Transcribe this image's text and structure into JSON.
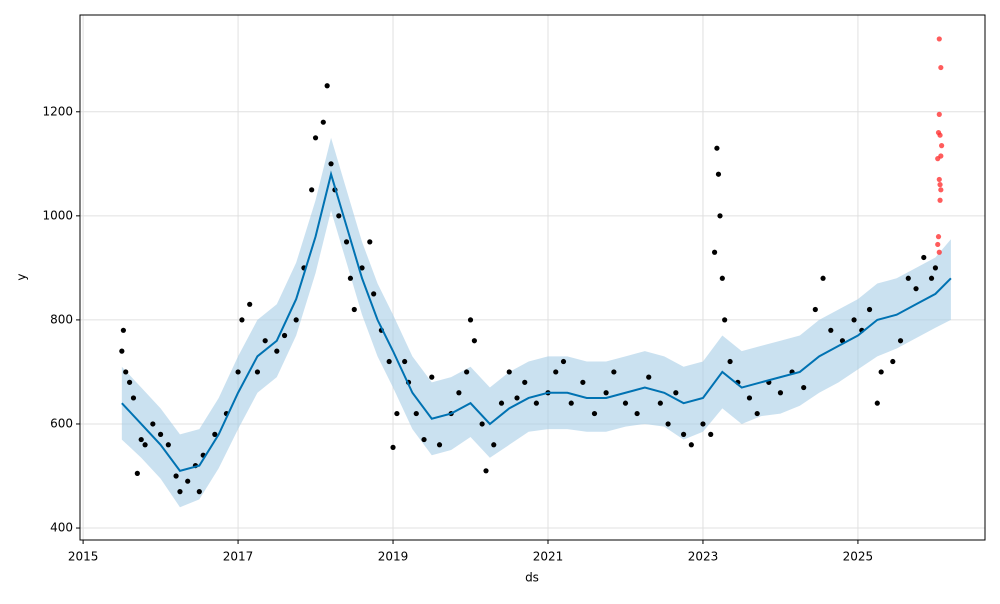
{
  "chart_data": {
    "type": "forecast",
    "xlabel": "ds",
    "ylabel": "y",
    "xlim": [
      2014.96,
      2026.64
    ],
    "ylim": [
      377,
      1386
    ],
    "xticks": [
      2015,
      2017,
      2019,
      2021,
      2023,
      2025
    ],
    "yticks": [
      400,
      600,
      800,
      1000,
      1200
    ],
    "grid": true,
    "forecast": {
      "color": "#0072b2",
      "band_color": "#a6cde6",
      "x": [
        2015.5,
        2015.75,
        2016.0,
        2016.25,
        2016.5,
        2016.75,
        2017.0,
        2017.25,
        2017.5,
        2017.75,
        2018.0,
        2018.2,
        2018.4,
        2018.6,
        2018.8,
        2019.0,
        2019.25,
        2019.5,
        2019.75,
        2020.0,
        2020.25,
        2020.5,
        2020.75,
        2021.0,
        2021.25,
        2021.5,
        2021.75,
        2022.0,
        2022.25,
        2022.5,
        2022.75,
        2023.0,
        2023.25,
        2023.5,
        2023.75,
        2024.0,
        2024.25,
        2024.5,
        2024.75,
        2025.0,
        2025.25,
        2025.5,
        2025.75,
        2026.0,
        2026.2
      ],
      "values": [
        640,
        600,
        560,
        510,
        520,
        580,
        660,
        730,
        760,
        840,
        960,
        1080,
        980,
        880,
        800,
        740,
        660,
        610,
        620,
        640,
        600,
        630,
        650,
        660,
        660,
        650,
        650,
        660,
        670,
        660,
        640,
        650,
        700,
        670,
        680,
        690,
        700,
        730,
        750,
        770,
        800,
        810,
        830,
        850,
        880
      ],
      "lower": [
        570,
        535,
        495,
        440,
        455,
        515,
        590,
        660,
        690,
        770,
        890,
        1010,
        910,
        810,
        730,
        670,
        590,
        540,
        550,
        575,
        535,
        560,
        585,
        590,
        590,
        585,
        585,
        595,
        600,
        595,
        570,
        585,
        630,
        600,
        615,
        620,
        635,
        660,
        680,
        705,
        730,
        745,
        765,
        785,
        800
      ],
      "upper": [
        710,
        670,
        630,
        580,
        590,
        650,
        730,
        800,
        830,
        910,
        1030,
        1150,
        1050,
        950,
        870,
        810,
        730,
        680,
        690,
        710,
        670,
        700,
        720,
        730,
        730,
        720,
        720,
        730,
        740,
        730,
        710,
        720,
        770,
        740,
        750,
        760,
        770,
        800,
        820,
        840,
        870,
        880,
        900,
        920,
        955
      ]
    },
    "points": {
      "color": "#000000",
      "x": [
        2015.5,
        2015.52,
        2015.55,
        2015.6,
        2015.65,
        2015.7,
        2015.75,
        2015.8,
        2015.9,
        2016.0,
        2016.1,
        2016.2,
        2016.25,
        2016.35,
        2016.45,
        2016.5,
        2016.55,
        2016.7,
        2016.85,
        2017.0,
        2017.05,
        2017.15,
        2017.25,
        2017.35,
        2017.5,
        2017.6,
        2017.75,
        2017.85,
        2017.95,
        2018.0,
        2018.1,
        2018.15,
        2018.2,
        2018.25,
        2018.3,
        2018.4,
        2018.45,
        2018.5,
        2018.6,
        2018.7,
        2018.75,
        2018.85,
        2018.95,
        2019.0,
        2019.05,
        2019.15,
        2019.2,
        2019.3,
        2019.4,
        2019.5,
        2019.6,
        2019.75,
        2019.85,
        2019.95,
        2020.0,
        2020.05,
        2020.15,
        2020.2,
        2020.3,
        2020.4,
        2020.5,
        2020.6,
        2020.7,
        2020.85,
        2021.0,
        2021.1,
        2021.2,
        2021.3,
        2021.45,
        2021.6,
        2021.75,
        2021.85,
        2022.0,
        2022.15,
        2022.3,
        2022.45,
        2022.55,
        2022.65,
        2022.75,
        2022.85,
        2023.0,
        2023.1,
        2023.15,
        2023.18,
        2023.2,
        2023.22,
        2023.25,
        2023.28,
        2023.35,
        2023.45,
        2023.6,
        2023.7,
        2023.85,
        2024.0,
        2024.15,
        2024.3,
        2024.45,
        2024.55,
        2024.65,
        2024.8,
        2024.95,
        2025.05,
        2025.15,
        2025.25,
        2025.3,
        2025.45,
        2025.55,
        2025.65,
        2025.75,
        2025.85,
        2025.95,
        2026.0
      ],
      "values": [
        740,
        780,
        700,
        680,
        650,
        505,
        570,
        560,
        600,
        580,
        560,
        500,
        470,
        490,
        520,
        470,
        540,
        580,
        620,
        700,
        800,
        830,
        700,
        760,
        740,
        770,
        800,
        900,
        1050,
        1150,
        1180,
        1250,
        1100,
        1050,
        1000,
        950,
        880,
        820,
        900,
        950,
        850,
        780,
        720,
        555,
        620,
        720,
        680,
        620,
        570,
        690,
        560,
        620,
        660,
        700,
        800,
        760,
        600,
        510,
        560,
        640,
        700,
        650,
        680,
        640,
        660,
        700,
        720,
        640,
        680,
        620,
        660,
        700,
        640,
        620,
        690,
        640,
        600,
        660,
        580,
        560,
        600,
        580,
        930,
        1130,
        1080,
        1000,
        880,
        800,
        720,
        680,
        650,
        620,
        680,
        660,
        700,
        670,
        820,
        880,
        780,
        760,
        800,
        780,
        820,
        640,
        700,
        720,
        760,
        880,
        860,
        920,
        880,
        900
      ]
    },
    "outliers": {
      "color": "#ff3333",
      "x": [
        2026.05,
        2026.07,
        2026.05,
        2026.04,
        2026.06,
        2026.08,
        2026.07,
        2026.03,
        2026.05,
        2026.06,
        2026.07,
        2026.06,
        2026.04,
        2026.03,
        2026.05
      ],
      "values": [
        1340,
        1285,
        1195,
        1160,
        1155,
        1135,
        1115,
        1110,
        1070,
        1060,
        1050,
        1030,
        960,
        945,
        930
      ]
    }
  }
}
